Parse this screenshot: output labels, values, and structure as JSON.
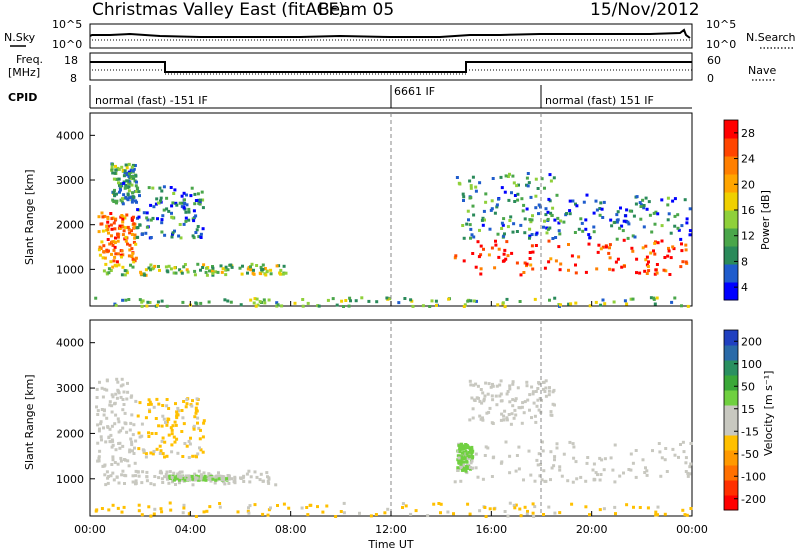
{
  "header": {
    "station": "Christmas Valley East (fitACF)",
    "beam": "Beam 05",
    "date": "15/Nov/2012"
  },
  "sky_panel": {
    "left_label": "N.Sky",
    "left_ticks": [
      "10^5",
      "10^0"
    ],
    "right_label": "N.Search",
    "right_ticks": [
      "10^5",
      "10^0"
    ]
  },
  "freq_panel": {
    "left_label_1": "Freq.",
    "left_label_2": "[MHz]",
    "left_ticks": [
      "18",
      "8"
    ],
    "right_label": "Nave",
    "right_ticks": [
      "60",
      "0"
    ]
  },
  "cpid": {
    "label": "CPID",
    "segments": [
      {
        "text": "normal (fast) -151 IF",
        "start_hour": 0
      },
      {
        "text": "6661 IF",
        "start_hour": 12
      },
      {
        "text": "normal (fast) 151 IF",
        "start_hour": 18
      }
    ]
  },
  "axes": {
    "xlabel": "Time UT",
    "ylabel": "Slant Range [km]",
    "x_tick_labels": [
      "00:00",
      "04:00",
      "08:00",
      "12:00",
      "16:00",
      "20:00",
      "00:00"
    ],
    "y_tick_labels": [
      "1000",
      "2000",
      "3000",
      "4000"
    ]
  },
  "colorbars": {
    "power": {
      "label": "Power [dB]",
      "tick_labels": [
        "4",
        "8",
        "12",
        "16",
        "20",
        "24",
        "28"
      ],
      "colors": [
        "#0000ff",
        "#1f5ccc",
        "#2a8a5a",
        "#4aa64a",
        "#8fd03a",
        "#f0d000",
        "#ffa500",
        "#ff7f00",
        "#ff4500",
        "#ff0000"
      ]
    },
    "velocity": {
      "label": "Velocity [m s⁻¹]",
      "tick_labels": [
        "200",
        "100",
        "50",
        "15",
        "-15",
        "-50",
        "-100",
        "-200"
      ],
      "colors": [
        "#2040c0",
        "#2a6aa8",
        "#2a9060",
        "#3aa838",
        "#70d040",
        "#c8c8c0",
        "#c8c8c0",
        "#ffc000",
        "#ff9900",
        "#ff7000",
        "#ff3000",
        "#ff0000"
      ]
    }
  },
  "chart_data": [
    {
      "type": "heatmap",
      "panel": "power",
      "x": [
        0,
        24
      ],
      "xlim": [
        0,
        24
      ],
      "ylim": [
        180,
        4500
      ],
      "cbar_range": [
        0,
        32
      ],
      "blobs": [
        {
          "t0": 0.3,
          "t1": 1.8,
          "r0": 1200,
          "r1": 2300,
          "v": 24
        },
        {
          "t0": 0.8,
          "t1": 1.8,
          "r0": 2500,
          "r1": 3400,
          "v": 10
        },
        {
          "t0": 1.8,
          "t1": 4.5,
          "r0": 1700,
          "r1": 2900,
          "v": 7
        },
        {
          "t0": 0.5,
          "t1": 7.8,
          "r0": 900,
          "r1": 1150,
          "v": 14
        },
        {
          "t0": 14.5,
          "t1": 23.9,
          "r0": 900,
          "r1": 1700,
          "v": 28
        },
        {
          "t0": 14.5,
          "t1": 18.5,
          "r0": 1700,
          "r1": 3200,
          "v": 9
        },
        {
          "t0": 18.0,
          "t1": 23.9,
          "r0": 1700,
          "r1": 2700,
          "v": 6
        },
        {
          "t0": 0.0,
          "t1": 24.0,
          "r0": 200,
          "r1": 400,
          "v": 12
        }
      ]
    },
    {
      "type": "heatmap",
      "panel": "velocity",
      "x": [
        0,
        24
      ],
      "xlim": [
        0,
        24
      ],
      "ylim": [
        180,
        4500
      ],
      "cbar_range": [
        -200,
        200
      ],
      "blobs": [
        {
          "t0": 0.2,
          "t1": 1.8,
          "r0": 1300,
          "r1": 3300,
          "v": 0
        },
        {
          "t0": 1.8,
          "t1": 4.5,
          "r0": 1500,
          "r1": 2800,
          "v": -40
        },
        {
          "t0": 0.5,
          "t1": 7.5,
          "r0": 900,
          "r1": 1200,
          "v": 0
        },
        {
          "t0": 3.0,
          "t1": 5.5,
          "r0": 1000,
          "r1": 1100,
          "v": 30
        },
        {
          "t0": 14.5,
          "t1": 23.9,
          "r0": 950,
          "r1": 1850,
          "v": 0
        },
        {
          "t0": 14.6,
          "t1": 15.2,
          "r0": 1200,
          "r1": 1800,
          "v": 40
        },
        {
          "t0": 15.0,
          "t1": 18.5,
          "r0": 2200,
          "r1": 3200,
          "v": 0
        },
        {
          "t0": 0.0,
          "t1": 24.0,
          "r0": 200,
          "r1": 500,
          "v": -40
        }
      ]
    }
  ]
}
